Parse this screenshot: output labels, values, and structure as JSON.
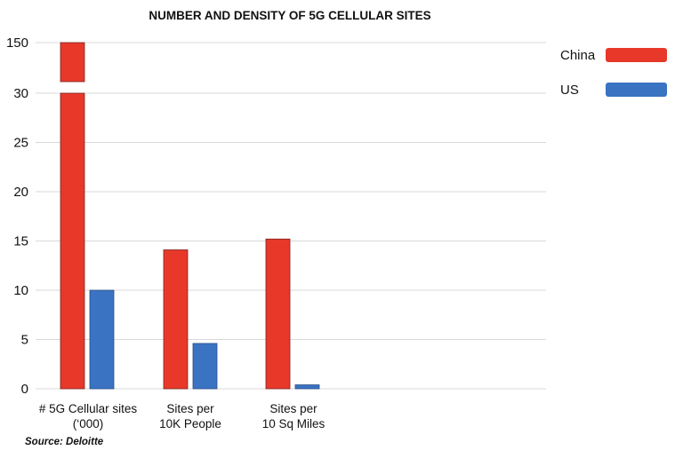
{
  "chart_data": {
    "type": "bar",
    "title": "NUMBER AND DENSITY OF 5G CELLULAR SITES",
    "categories": [
      "# 5G Cellular sites\n(‘000)",
      "Sites per\n10K People",
      "Sites per\n10 Sq Miles"
    ],
    "series": [
      {
        "name": "China",
        "values": [
          150,
          14.1,
          15.2
        ],
        "color": "#e8382a"
      },
      {
        "name": "US",
        "values": [
          10,
          4.6,
          0.4
        ],
        "color": "#3a73c2"
      }
    ],
    "y_ticks": [
      0,
      5,
      10,
      15,
      20,
      25,
      30,
      150
    ],
    "axis_break": {
      "from": 30,
      "to": 150
    },
    "ylim": [
      0,
      150
    ],
    "grid": true,
    "legend_position": "top-right",
    "source": "Source: Deloitte"
  }
}
